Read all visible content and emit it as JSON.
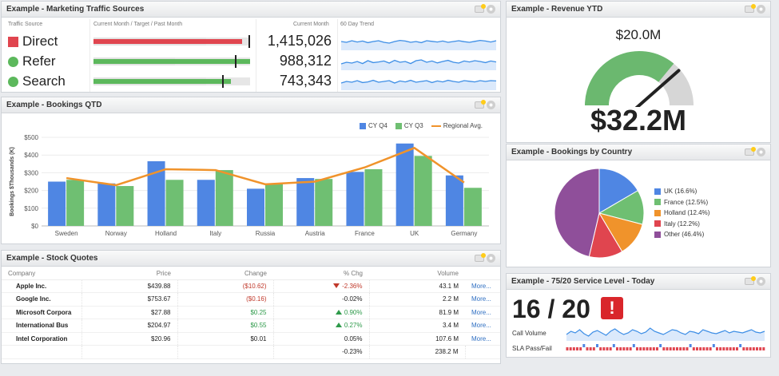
{
  "marketing": {
    "title": "Example - Marketing Traffic Sources",
    "headers": {
      "source": "Traffic Source",
      "bars": "Current Month / Target / Past Month",
      "current": "Current Month",
      "trend": "60 Day Trend"
    },
    "rows": [
      {
        "name": "Direct",
        "value": "1,415,026",
        "current_pct": 95,
        "past_pct": 100,
        "target_pct": 100,
        "color": "#e0454f",
        "shape": "square",
        "trend": [
          0.55,
          0.5,
          0.6,
          0.52,
          0.58,
          0.48,
          0.55,
          0.6,
          0.5,
          0.45,
          0.55,
          0.62,
          0.58,
          0.5,
          0.55,
          0.48,
          0.6,
          0.56,
          0.52,
          0.58,
          0.5,
          0.55,
          0.6,
          0.54,
          0.5,
          0.56,
          0.62,
          0.58,
          0.52,
          0.6
        ]
      },
      {
        "name": "Refer",
        "value": "988,312",
        "current_pct": 100,
        "past_pct": 72,
        "target_pct": 91,
        "color": "#5cb85c",
        "shape": "circle",
        "trend": [
          0.4,
          0.5,
          0.45,
          0.55,
          0.42,
          0.6,
          0.48,
          0.52,
          0.58,
          0.45,
          0.62,
          0.5,
          0.55,
          0.42,
          0.6,
          0.65,
          0.5,
          0.58,
          0.46,
          0.55,
          0.62,
          0.5,
          0.45,
          0.58,
          0.52,
          0.6,
          0.55,
          0.48,
          0.58,
          0.52
        ]
      },
      {
        "name": "Search",
        "value": "743,343",
        "current_pct": 88,
        "past_pct": 100,
        "target_pct": 83,
        "color": "#5cb85c",
        "shape": "circle",
        "trend": [
          0.45,
          0.55,
          0.5,
          0.6,
          0.48,
          0.52,
          0.62,
          0.5,
          0.55,
          0.6,
          0.45,
          0.58,
          0.52,
          0.62,
          0.5,
          0.55,
          0.6,
          0.48,
          0.58,
          0.52,
          0.62,
          0.55,
          0.5,
          0.6,
          0.56,
          0.52,
          0.6,
          0.55,
          0.6,
          0.58
        ]
      }
    ]
  },
  "revenue": {
    "title": "Example - Revenue YTD",
    "target_label": "$20.0M",
    "value": "$32.2M",
    "gauge_level": 0.92
  },
  "bookings_qtd": {
    "title": "Example - Bookings QTD",
    "chart_data": {
      "type": "bar",
      "title": "",
      "xlabel": "",
      "ylabel": "Bookings $Thousands (K)",
      "categories": [
        "Sweden",
        "Norway",
        "Holland",
        "Italy",
        "Russia",
        "Austria",
        "France",
        "UK",
        "Germany"
      ],
      "series": [
        {
          "name": "CY Q4",
          "type": "bar",
          "color": "#4f86e3",
          "values": [
            250,
            240,
            365,
            260,
            210,
            270,
            305,
            465,
            285
          ]
        },
        {
          "name": "CY Q3",
          "type": "bar",
          "color": "#6fbf72",
          "values": [
            260,
            225,
            260,
            315,
            240,
            265,
            320,
            395,
            215
          ]
        },
        {
          "name": "Regional Avg.",
          "type": "line",
          "color": "#f0932b",
          "values": [
            270,
            230,
            320,
            315,
            235,
            250,
            330,
            440,
            245
          ]
        }
      ],
      "y_ticks": [
        "$0",
        "$100",
        "$200",
        "$300",
        "$400",
        "$500"
      ],
      "ylim": [
        0,
        500
      ],
      "grid": true,
      "legend": "top-right"
    }
  },
  "stocks": {
    "title": "Example - Stock Quotes",
    "headers": [
      "Company",
      "Price",
      "Change",
      "% Chg",
      "Volume",
      ""
    ],
    "rows": [
      {
        "company": "Apple Inc.",
        "price": "$439.88",
        "change": "($10.62)",
        "change_class": "neg",
        "pct": "-2.36%",
        "pct_class": "neg",
        "arrow": "down",
        "volume": "43.1 M",
        "more": "More..."
      },
      {
        "company": "Google Inc.",
        "price": "$753.67",
        "change": "($0.16)",
        "change_class": "neg",
        "pct": "-0.02%",
        "pct_class": "",
        "arrow": "",
        "volume": "2.2 M",
        "more": "More..."
      },
      {
        "company": "Microsoft Corpora",
        "price": "$27.88",
        "change": "$0.25",
        "change_class": "pos",
        "pct": "0.90%",
        "pct_class": "pos",
        "arrow": "up",
        "volume": "81.9 M",
        "more": "More..."
      },
      {
        "company": "International Bus",
        "price": "$204.97",
        "change": "$0.55",
        "change_class": "pos",
        "pct": "0.27%",
        "pct_class": "pos",
        "arrow": "up",
        "volume": "3.4 M",
        "more": "More..."
      },
      {
        "company": "Intel Corporation",
        "price": "$20.96",
        "change": "$0.01",
        "change_class": "",
        "pct": "0.05%",
        "pct_class": "",
        "arrow": "",
        "volume": "107.6 M",
        "more": "More..."
      }
    ],
    "totals": {
      "pct": "-0.23%",
      "volume": "238.2 M"
    }
  },
  "country": {
    "title": "Example - Bookings by Country",
    "chart_data": {
      "type": "pie",
      "title": "",
      "slices": [
        {
          "label": "UK (16.6%)",
          "value": 16.6,
          "color": "#4f86e3"
        },
        {
          "label": "France (12.5%)",
          "value": 12.5,
          "color": "#6fbf72"
        },
        {
          "label": "Holland (12.4%)",
          "value": 12.4,
          "color": "#f0932b"
        },
        {
          "label": "Italy (12.2%)",
          "value": 12.2,
          "color": "#e0454f"
        },
        {
          "label": "Other (46.4%)",
          "value": 46.4,
          "color": "#8f4f9a"
        }
      ],
      "legend": "right"
    }
  },
  "service": {
    "title": "Example - 75/20 Service Level - Today",
    "score": "16 / 20",
    "alert": "!",
    "call_volume_label": "Call Volume",
    "sla_label": "SLA Pass/Fail",
    "call_volume": [
      0.4,
      0.6,
      0.5,
      0.7,
      0.45,
      0.3,
      0.55,
      0.65,
      0.5,
      0.35,
      0.6,
      0.75,
      0.55,
      0.4,
      0.5,
      0.7,
      0.6,
      0.45,
      0.55,
      0.8,
      0.6,
      0.5,
      0.4,
      0.55,
      0.7,
      0.65,
      0.5,
      0.4,
      0.6,
      0.55,
      0.45,
      0.7,
      0.6,
      0.5,
      0.45,
      0.55,
      0.65,
      0.5,
      0.6,
      0.55,
      0.5,
      0.6,
      0.7,
      0.55,
      0.5,
      0.6
    ],
    "sla": [
      0,
      0,
      0,
      0,
      0,
      1,
      0,
      0,
      0,
      1,
      0,
      0,
      0,
      0,
      1,
      0,
      0,
      0,
      0,
      0,
      1,
      0,
      0,
      0,
      0,
      0,
      0,
      0,
      1,
      0,
      0,
      0,
      0,
      0,
      0,
      0,
      0,
      1,
      0,
      0,
      0,
      0,
      0,
      0,
      1,
      0,
      0,
      0,
      0,
      0,
      0,
      0,
      1,
      0,
      0,
      0,
      0,
      0,
      0,
      0
    ],
    "colors": {
      "pass": "#4f86e3",
      "fail": "#e0454f"
    }
  }
}
